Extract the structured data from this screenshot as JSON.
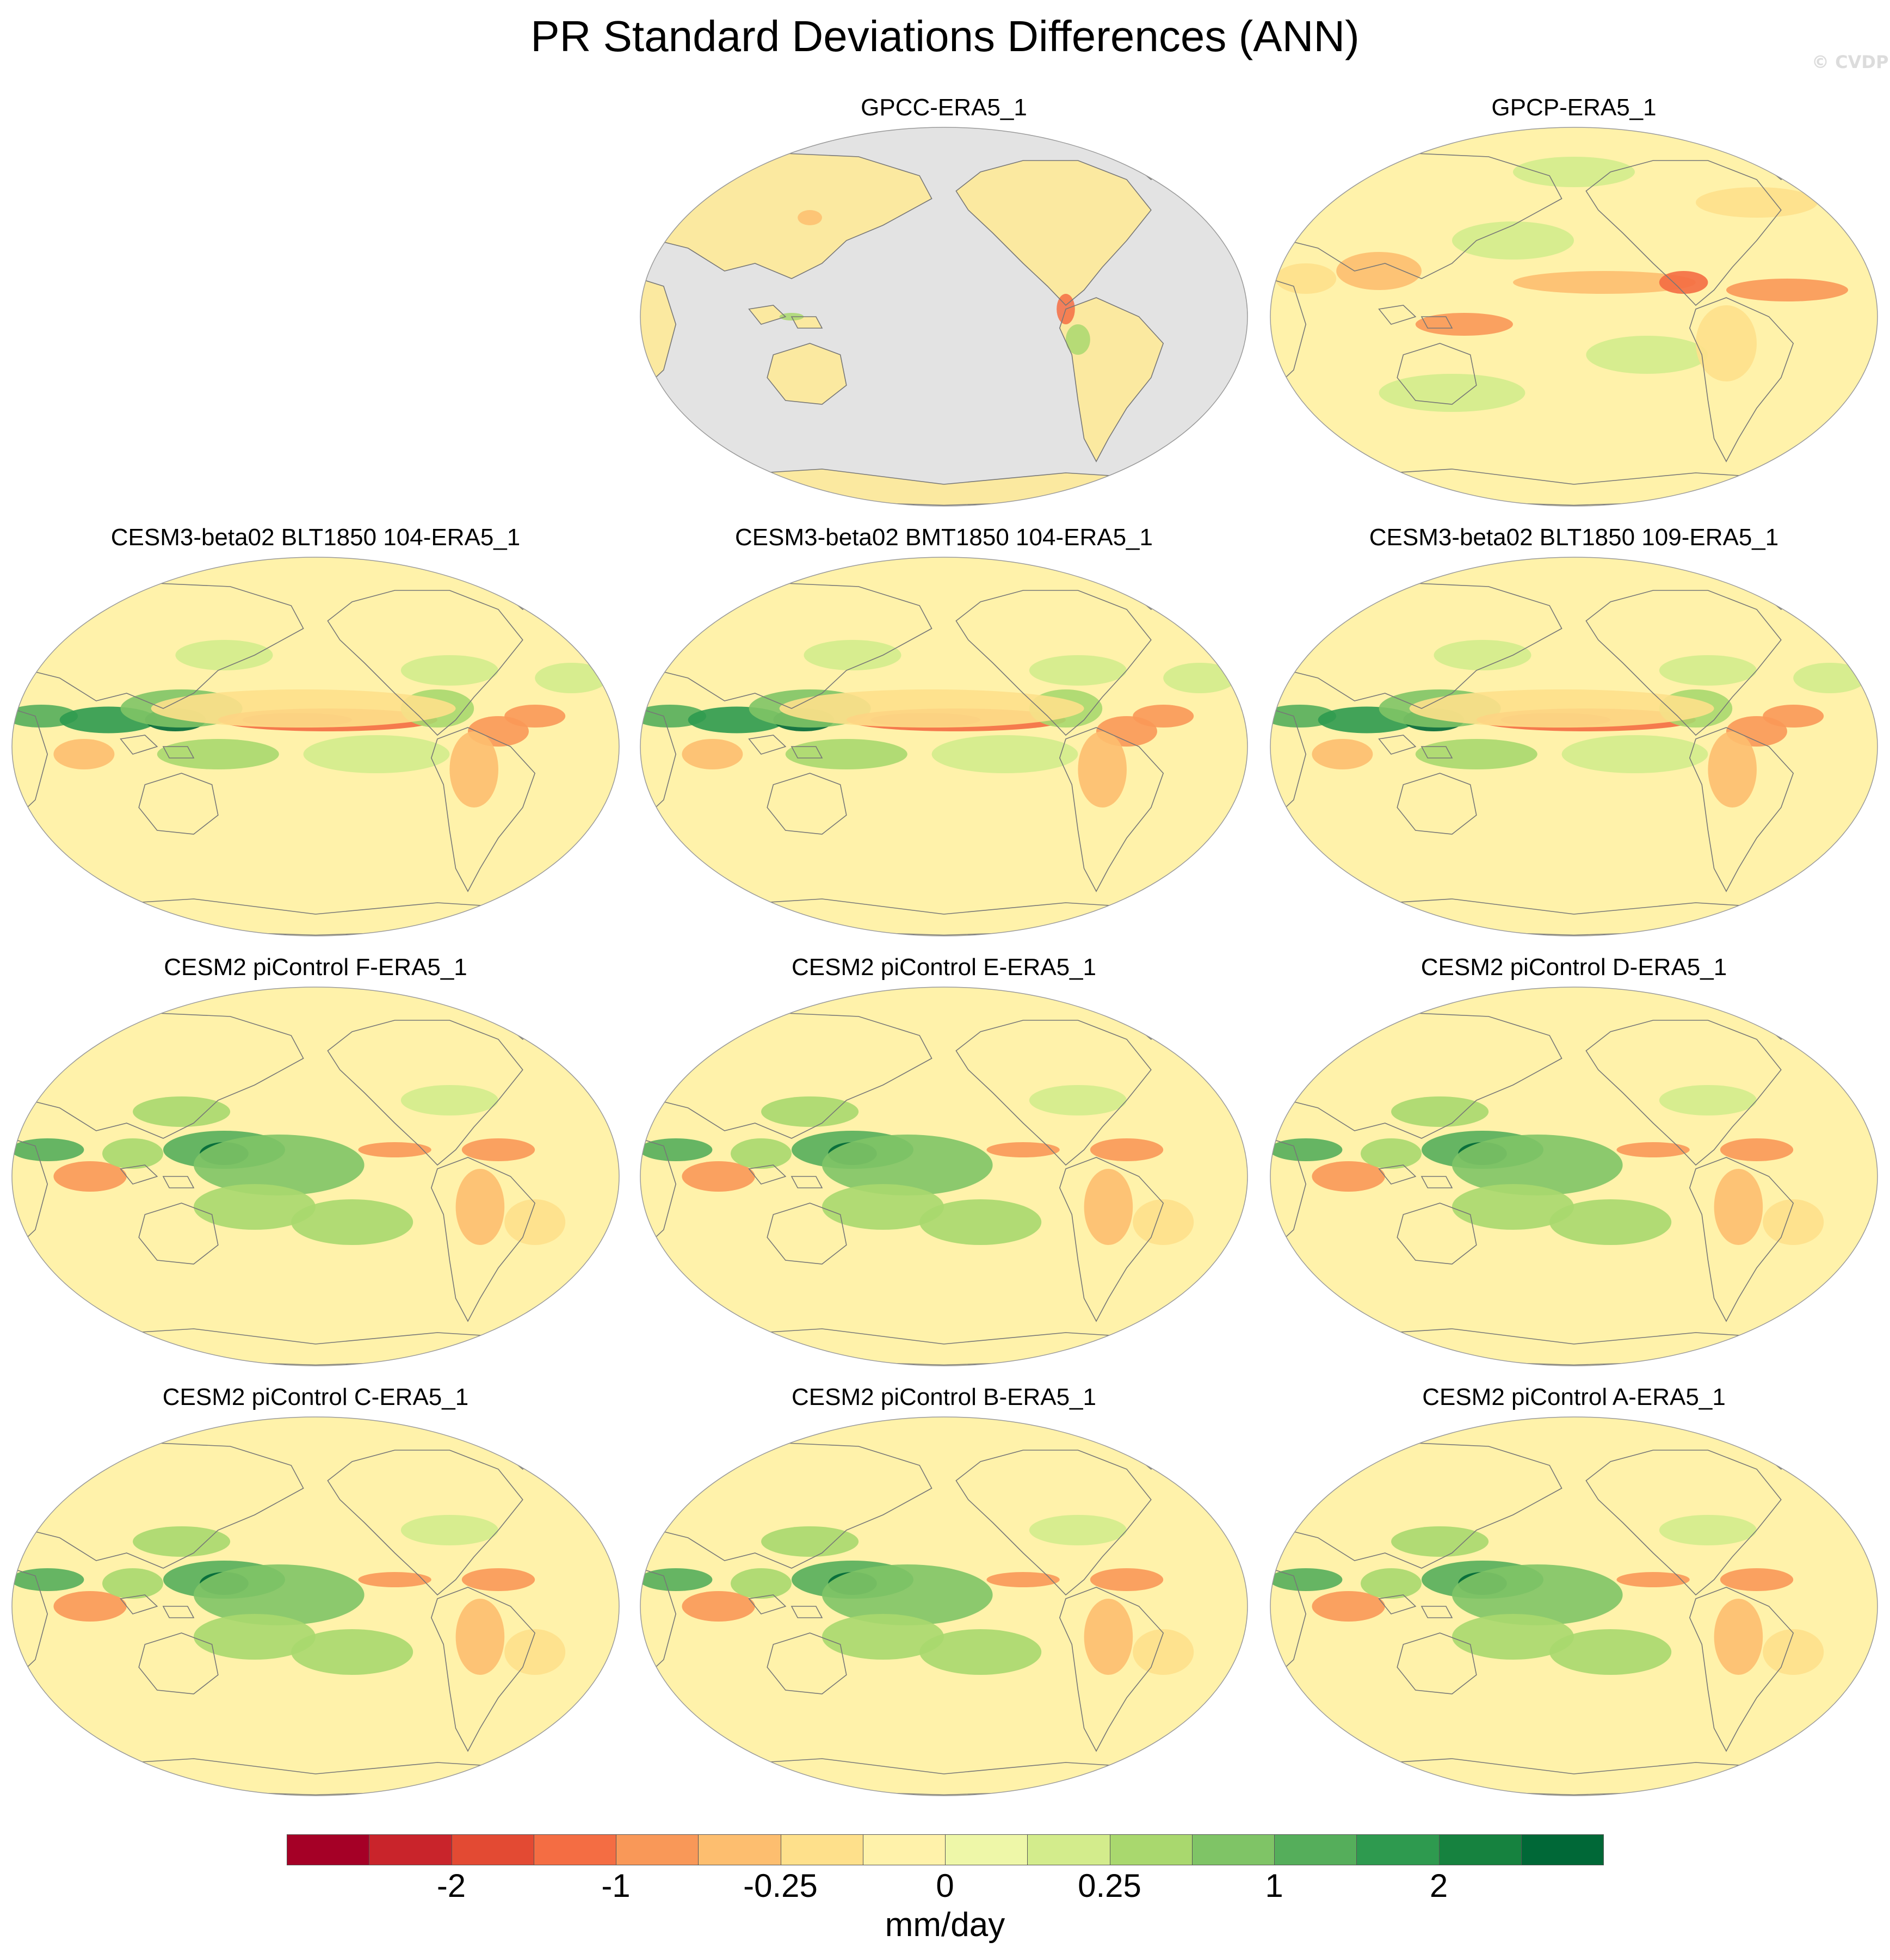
{
  "title": "PR Standard Deviations Differences (ANN)",
  "watermark": "© CVDP",
  "panels": [
    {
      "title": "GPCC-ERA5_1",
      "style": "land"
    },
    {
      "title": "GPCP-ERA5_1",
      "style": "obs"
    },
    {
      "title": "CESM3-beta02 BLT1850 104-ERA5_1",
      "style": "cesm3"
    },
    {
      "title": "CESM3-beta02 BMT1850 104-ERA5_1",
      "style": "cesm3"
    },
    {
      "title": "CESM3-beta02 BLT1850 109-ERA5_1",
      "style": "cesm3"
    },
    {
      "title": "CESM2 piControl F-ERA5_1",
      "style": "cesm2"
    },
    {
      "title": "CESM2 piControl E-ERA5_1",
      "style": "cesm2"
    },
    {
      "title": "CESM2 piControl D-ERA5_1",
      "style": "cesm2"
    },
    {
      "title": "CESM2 piControl C-ERA5_1",
      "style": "cesm2"
    },
    {
      "title": "CESM2 piControl B-ERA5_1",
      "style": "cesm2"
    },
    {
      "title": "CESM2 piControl A-ERA5_1",
      "style": "cesm2"
    }
  ],
  "colorbar": {
    "colors": [
      "#a50026",
      "#c9242b",
      "#e34a33",
      "#f46d43",
      "#f99858",
      "#fdbe6f",
      "#fee08b",
      "#fff2aa",
      "#eef7a8",
      "#d3ec8c",
      "#a9d86e",
      "#7fc466",
      "#55ae5b",
      "#2e9a4f",
      "#16823f",
      "#006837"
    ],
    "tick_labels": [
      "-2",
      "-1",
      "-0.25",
      "0",
      "0.25",
      "1",
      "2"
    ],
    "tick_boundaries": [
      2,
      4,
      6,
      8,
      10,
      12,
      14
    ],
    "units": "mm/day"
  },
  "colors": {
    "ocean_missing": "#e3e3e3",
    "neutral": "#fff2aa",
    "coast": "#777777"
  }
}
